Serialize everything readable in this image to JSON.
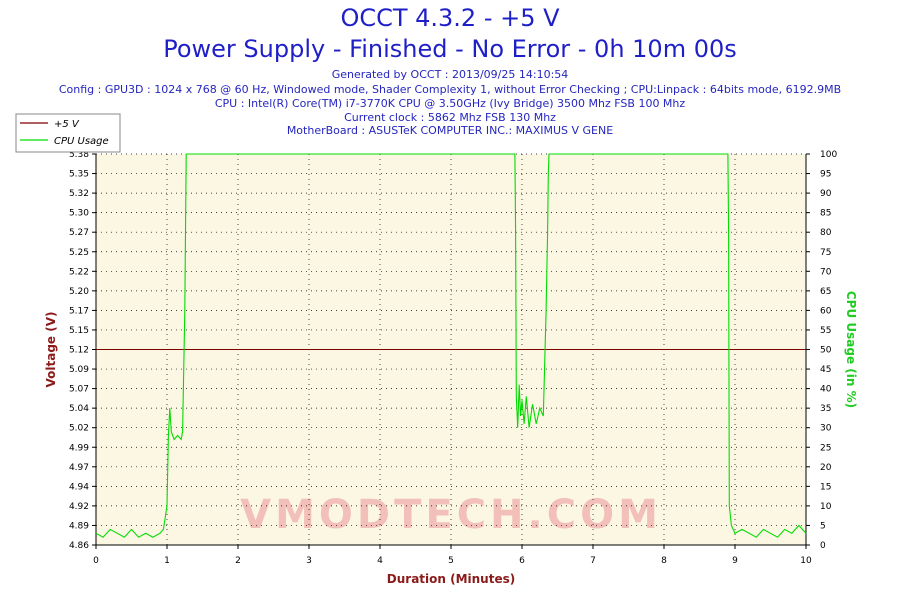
{
  "header": {
    "title": "OCCT 4.3.2 - +5 V",
    "subtitle": "Power Supply - Finished - No Error - 0h 10m 00s",
    "info_lines": [
      "Generated by OCCT : 2013/09/25 14:10:54",
      "Config : GPU3D : 1024 x 768 @ 60 Hz, Windowed mode, Shader Complexity 1, without Error Checking ; CPU:Linpack : 64bits mode, 6192.9MB",
      "CPU : Intel(R) Core(TM) i7-3770K CPU @ 3.50GHz (Ivy Bridge) 3500 Mhz FSB 100 Mhz",
      "Current clock : 5862 Mhz FSB 130 Mhz",
      "MotherBoard : ASUSTeK COMPUTER INC.: MAXIMUS V GENE"
    ]
  },
  "chart_data": {
    "type": "line",
    "xlabel": "Duration (Minutes)",
    "ylabel": "Voltage (V)",
    "y2label": "CPU Usage (in %)",
    "xlim": [
      0,
      10
    ],
    "ylim": [
      4.86,
      5.38
    ],
    "y2lim": [
      0,
      100
    ],
    "x_ticks": [
      "0",
      "1",
      "2",
      "3",
      "4",
      "5",
      "6",
      "7",
      "8",
      "9",
      "10"
    ],
    "y_ticks": [
      "4.86",
      "4.89",
      "4.92",
      "4.94",
      "4.97",
      "4.99",
      "5.02",
      "5.04",
      "5.07",
      "5.09",
      "5.12",
      "5.15",
      "5.17",
      "5.20",
      "5.22",
      "5.25",
      "5.27",
      "5.30",
      "5.32",
      "5.35",
      "5.38"
    ],
    "y2_ticks": [
      "0",
      "5",
      "10",
      "15",
      "20",
      "25",
      "30",
      "35",
      "40",
      "45",
      "50",
      "55",
      "60",
      "65",
      "70",
      "75",
      "80",
      "85",
      "90",
      "95",
      "100"
    ],
    "grid": true,
    "legend_position": "top-left",
    "watermark": "VMODTECH.COM",
    "series": [
      {
        "name": "+5 V",
        "axis": "left",
        "color": "#800000",
        "x": [
          0,
          10
        ],
        "y": [
          5.12,
          5.12
        ]
      },
      {
        "name": "CPU Usage",
        "axis": "right",
        "color": "#00dd00",
        "x": [
          0,
          0.1,
          0.2,
          0.3,
          0.4,
          0.5,
          0.6,
          0.7,
          0.8,
          0.9,
          0.95,
          1.0,
          1.02,
          1.04,
          1.06,
          1.1,
          1.15,
          1.2,
          1.22,
          1.25,
          1.26,
          1.27,
          2.0,
          3.0,
          4.0,
          5.0,
          5.9,
          5.91,
          5.92,
          5.94,
          5.96,
          5.98,
          6.0,
          6.03,
          6.06,
          6.1,
          6.15,
          6.2,
          6.25,
          6.3,
          6.34,
          6.36,
          6.37,
          6.38,
          7.0,
          8.0,
          8.9,
          8.91,
          8.92,
          8.95,
          9.0,
          9.1,
          9.2,
          9.3,
          9.4,
          9.5,
          9.6,
          9.7,
          9.8,
          9.9,
          10.0
        ],
        "y": [
          3,
          2,
          4,
          3,
          2,
          4,
          2,
          3,
          2,
          3,
          4,
          10,
          28,
          35,
          29,
          27,
          28,
          27,
          29,
          60,
          80,
          100,
          100,
          100,
          100,
          100,
          100,
          80,
          38,
          30,
          41,
          33,
          37,
          31,
          38,
          30,
          36,
          31,
          35,
          33,
          60,
          80,
          95,
          100,
          100,
          100,
          100,
          80,
          10,
          5,
          3,
          4,
          3,
          2,
          4,
          3,
          2,
          4,
          3,
          5,
          3
        ]
      }
    ]
  }
}
